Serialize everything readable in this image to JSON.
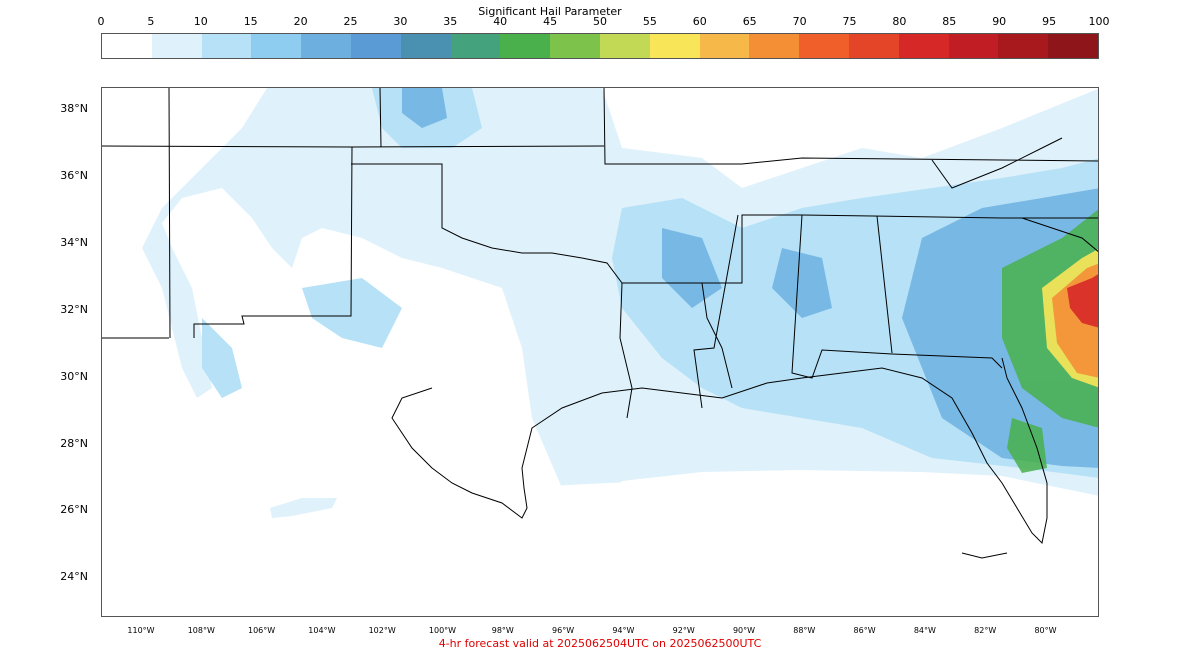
{
  "colorbar": {
    "title": "Significant Hail Parameter",
    "ticks": [
      "0",
      "5",
      "10",
      "15",
      "20",
      "25",
      "30",
      "35",
      "40",
      "45",
      "50",
      "55",
      "60",
      "65",
      "70",
      "75",
      "80",
      "85",
      "90",
      "95",
      "100"
    ],
    "colors": [
      "#ffffff",
      "#dff1fb",
      "#b6e1f6",
      "#8ecdf0",
      "#6db0e0",
      "#5b9bd5",
      "#4a90b0",
      "#44a27c",
      "#49b04c",
      "#7dc24b",
      "#c2d955",
      "#f8e658",
      "#f7b84a",
      "#f58f36",
      "#f05e2a",
      "#e44428",
      "#d72828",
      "#c01d24",
      "#a8191e",
      "#8e1519"
    ]
  },
  "map": {
    "lat_labels": [
      "38°N",
      "36°N",
      "34°N",
      "32°N",
      "30°N",
      "28°N",
      "26°N",
      "24°N"
    ],
    "lon_labels": [
      "110°W",
      "108°W",
      "106°W",
      "104°W",
      "102°W",
      "100°W",
      "98°W",
      "96°W",
      "94°W",
      "92°W",
      "90°W",
      "88°W",
      "86°W",
      "84°W",
      "82°W",
      "80°W"
    ],
    "land_color": "#ffffff",
    "border_color": "#000000"
  },
  "footer": {
    "text": "4-hr forecast valid at 2025062504UTC on 2025062500UTC",
    "color": "#e00000"
  }
}
